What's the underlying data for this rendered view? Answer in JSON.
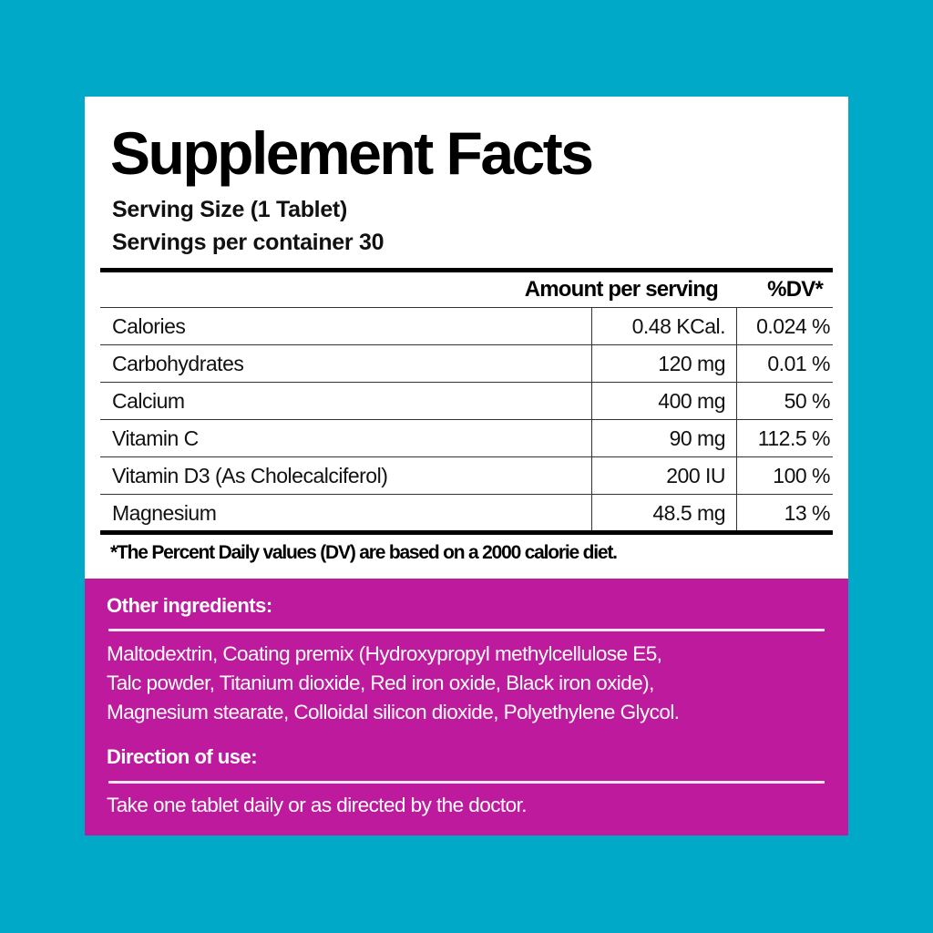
{
  "colors": {
    "background": "#00a9c8",
    "panel": "#ffffff",
    "accent": "#bd1a9e"
  },
  "title": "Supplement Facts",
  "serving_size": "Serving Size (1 Tablet)",
  "servings_per_container": "Servings per container 30",
  "table": {
    "headers": {
      "amount": "Amount per serving",
      "dv": "%DV*"
    },
    "rows": [
      {
        "name": "Calories",
        "amount": "0.48 KCal.",
        "dv": "0.024 %"
      },
      {
        "name": "Carbohydrates",
        "amount": "120 mg",
        "dv": "0.01 %"
      },
      {
        "name": "Calcium",
        "amount": "400 mg",
        "dv": "50 %"
      },
      {
        "name": "Vitamin C",
        "amount": "90 mg",
        "dv": "112.5 %"
      },
      {
        "name": "Vitamin D3 (As Cholecalciferol)",
        "amount": "200 IU",
        "dv": "100 %"
      },
      {
        "name": "Magnesium",
        "amount": "48.5 mg",
        "dv": "13 %"
      }
    ]
  },
  "footnote": "*The Percent Daily values (DV) are based on a 2000 calorie diet.",
  "other_ingredients": {
    "heading": "Other ingredients:",
    "lines": [
      "Maltodextrin, Coating premix (Hydroxypropyl methylcellulose E5,",
      "Talc powder, Titanium dioxide, Red iron oxide, Black iron oxide),",
      "Magnesium stearate, Colloidal silicon dioxide, Polyethylene Glycol."
    ]
  },
  "direction": {
    "heading": "Direction of use:",
    "text": "Take one tablet daily or as directed by the doctor."
  }
}
